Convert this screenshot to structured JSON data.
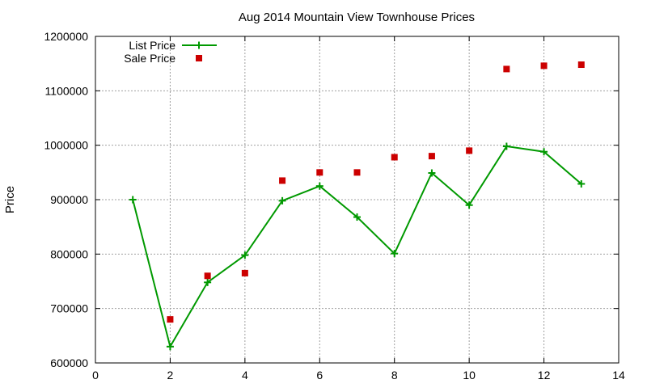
{
  "chart_data": {
    "type": "line",
    "title": "Aug 2014 Mountain View Townhouse Prices",
    "xlabel": "",
    "ylabel": "Price",
    "xlim": [
      0,
      14
    ],
    "ylim": [
      600000,
      1200000
    ],
    "xticks": [
      0,
      2,
      4,
      6,
      8,
      10,
      12,
      14
    ],
    "yticks": [
      600000,
      700000,
      800000,
      900000,
      1000000,
      1100000,
      1200000
    ],
    "grid": true,
    "legend_position": "top-left",
    "series": [
      {
        "name": "List Price",
        "style": "line-with-plus-markers",
        "color": "#009900",
        "points": [
          [
            1,
            900000
          ],
          [
            2,
            630000
          ],
          [
            3,
            748000
          ],
          [
            4,
            798000
          ],
          [
            5,
            898000
          ],
          [
            6,
            925000
          ],
          [
            7,
            868000
          ],
          [
            8,
            801000
          ],
          [
            9,
            949000
          ],
          [
            10,
            890000
          ],
          [
            11,
            998000
          ],
          [
            12,
            988000
          ],
          [
            13,
            929000
          ]
        ]
      },
      {
        "name": "Sale Price",
        "style": "square-markers",
        "color": "#cc0000",
        "points": [
          [
            2,
            680000
          ],
          [
            3,
            760000
          ],
          [
            4,
            765000
          ],
          [
            5,
            935000
          ],
          [
            6,
            950000
          ],
          [
            7,
            950000
          ],
          [
            8,
            978000
          ],
          [
            9,
            980000
          ],
          [
            10,
            990000
          ],
          [
            11,
            1140000
          ],
          [
            12,
            1146000
          ],
          [
            13,
            1148000
          ]
        ]
      }
    ]
  }
}
